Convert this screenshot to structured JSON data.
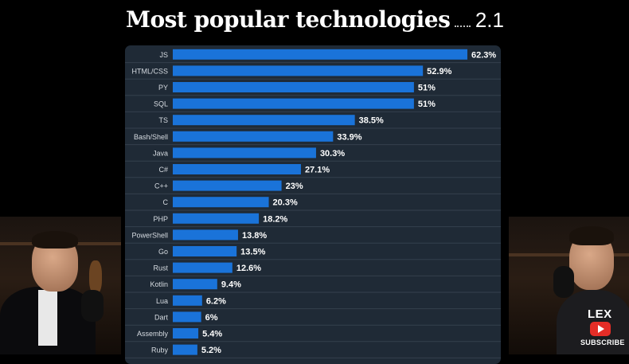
{
  "header": {
    "title": "Most popular technologies",
    "section": "2.1"
  },
  "colors": {
    "bar": "#1a73d9",
    "panel": "#1f2a36",
    "gridline": "#34404d",
    "label": "#ffffff"
  },
  "channel": {
    "logo": "LEX",
    "subscribe": "SUBSCRIBE"
  },
  "chart_data": {
    "type": "bar",
    "orientation": "horizontal",
    "categories": [
      "JS",
      "HTML/CSS",
      "PY",
      "SQL",
      "TS",
      "Bash/Shell",
      "Java",
      "C#",
      "C++",
      "C",
      "PHP",
      "PowerShell",
      "Go",
      "Rust",
      "Kotlin",
      "Lua",
      "Dart",
      "Assembly",
      "Ruby"
    ],
    "values": [
      62.3,
      52.9,
      51,
      51,
      38.5,
      33.9,
      30.3,
      27.1,
      23,
      20.3,
      18.2,
      13.8,
      13.5,
      12.6,
      9.4,
      6.2,
      6,
      5.4,
      5.2
    ],
    "value_labels": [
      "62.3%",
      "52.9%",
      "51%",
      "51%",
      "38.5%",
      "33.9%",
      "30.3%",
      "27.1%",
      "23%",
      "20.3%",
      "18.2%",
      "13.8%",
      "13.5%",
      "12.6%",
      "9.4%",
      "6.2%",
      "6%",
      "5.4%",
      "5.2%"
    ],
    "unit": "%",
    "xlim": [
      0,
      62.3
    ],
    "title": "",
    "xlabel": "",
    "ylabel": "",
    "grid": true,
    "legend": "none"
  }
}
